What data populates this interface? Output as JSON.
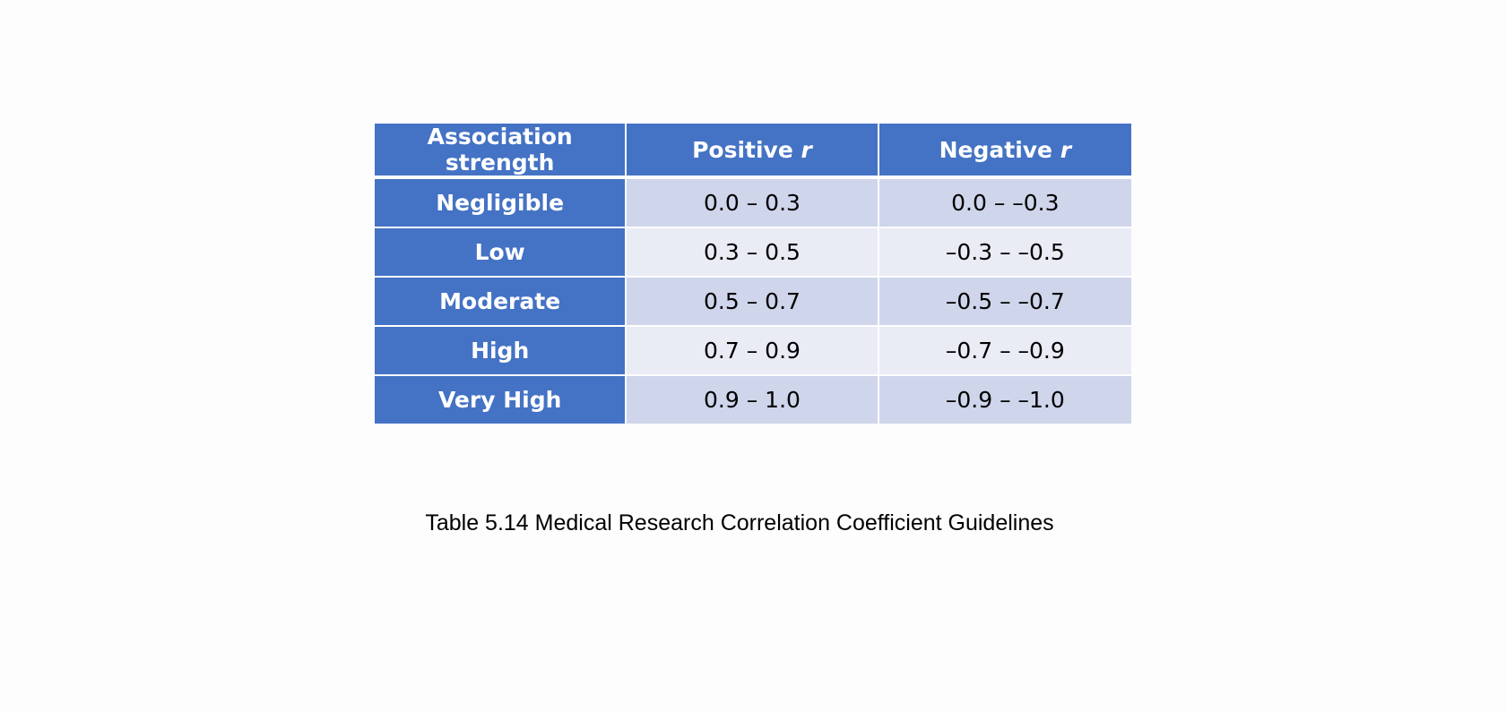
{
  "table": {
    "headers": [
      {
        "label": "Association strength",
        "italic_suffix": ""
      },
      {
        "label": "Positive ",
        "italic_suffix": "r"
      },
      {
        "label": "Negative ",
        "italic_suffix": "r"
      }
    ],
    "rows": [
      {
        "strength": "Negligible",
        "positive": "0.0 – 0.3",
        "negative": "0.0 – –0.3"
      },
      {
        "strength": "Low",
        "positive": "0.3 – 0.5",
        "negative": "–0.3 – –0.5"
      },
      {
        "strength": "Moderate",
        "positive": "0.5 – 0.7",
        "negative": "–0.5 – –0.7"
      },
      {
        "strength": "High",
        "positive": "0.7 – 0.9",
        "negative": "–0.7 – –0.9"
      },
      {
        "strength": "Very High",
        "positive": "0.9 – 1.0",
        "negative": "–0.9 – –1.0"
      }
    ]
  },
  "caption": "Table 5.14 Medical Research Correlation Coefficient Guidelines",
  "colors": {
    "header_blue": "#4472c4",
    "band_dark": "#cfd5ea",
    "band_light": "#e9ebf5"
  }
}
